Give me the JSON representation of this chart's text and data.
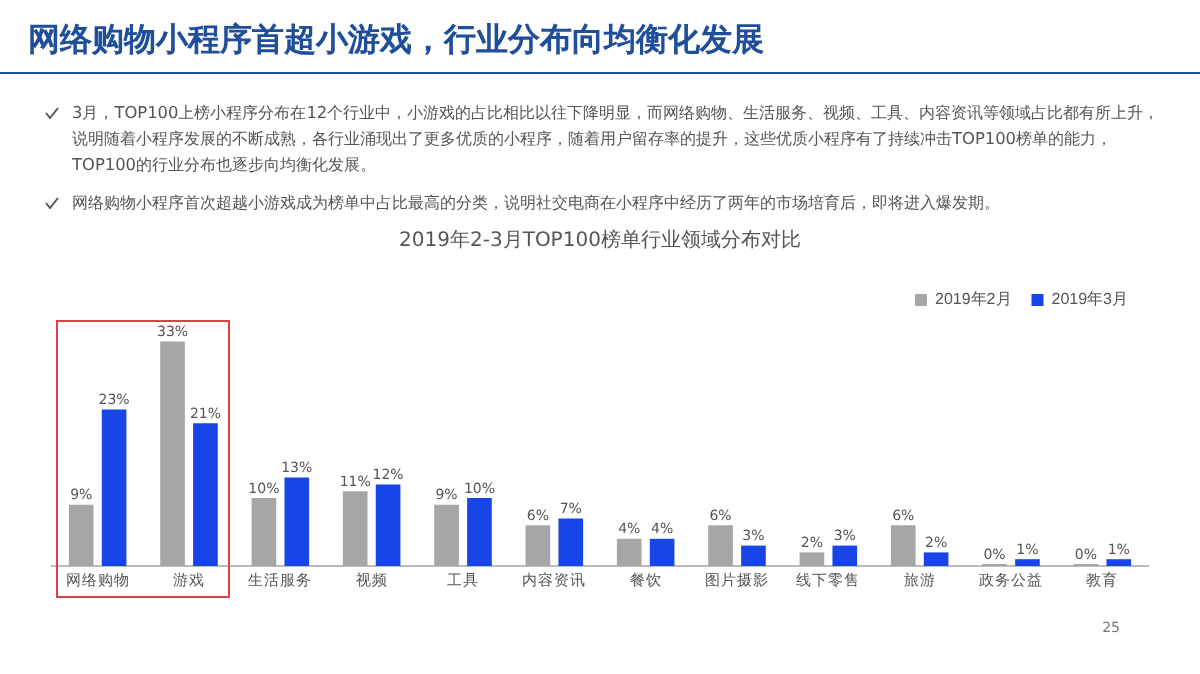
{
  "chart_data": {
    "type": "bar",
    "title": "网络购物小程序首超小游戏，行业分布向均衡化发展",
    "subtitle": "2019年2-3月TOP100榜单行业领域分布对比",
    "categories": [
      "网络购物",
      "游戏",
      "生活服务",
      "视频",
      "工具",
      "内容资讯",
      "餐饮",
      "图片摄影",
      "线下零售",
      "旅游",
      "政务公益",
      "教育"
    ],
    "series": [
      {
        "name": "2019年2月",
        "color": "#a6a6a6",
        "values": [
          9,
          33,
          10,
          11,
          9,
          6,
          4,
          6,
          2,
          6,
          0,
          0
        ],
        "value_labels": [
          "9%",
          "33%",
          "10%",
          "11%",
          "9%",
          "6%",
          "4%",
          "6%",
          "2%",
          "6%",
          "0%",
          "0%"
        ]
      },
      {
        "name": "2019年3月",
        "color": "#1745e8",
        "values": [
          23,
          21,
          13,
          12,
          10,
          7,
          4,
          3,
          3,
          2,
          1,
          1
        ],
        "value_labels": [
          "23%",
          "21%",
          "13%",
          "12%",
          "10%",
          "7%",
          "4%",
          "3%",
          "3%",
          "2%",
          "1%",
          "1%"
        ]
      }
    ],
    "legend": "top right",
    "grid": false,
    "annotations": [
      "3月，TOP100上榜小程序分布在12个行业中，小游戏的占比相比以往下降明显，而网络购物、生活服务、视频、工具、内容资讯等领域占比都有所上升，说明随着小程序发展的不断成熟，各行业涌现出了更多优质的小程序，随着用户留存率的提升，这些优质小程序有了持续冲击TOP100榜单的能力，TOP100的行业分布也逐步向均衡化发展。",
      "网络购物小程序首次超越小游戏成为榜单中占比最高的分类，说明社交电商在小程序中经历了两年的市场培育后，即将进入爆发期。",
      "25"
    ]
  }
}
